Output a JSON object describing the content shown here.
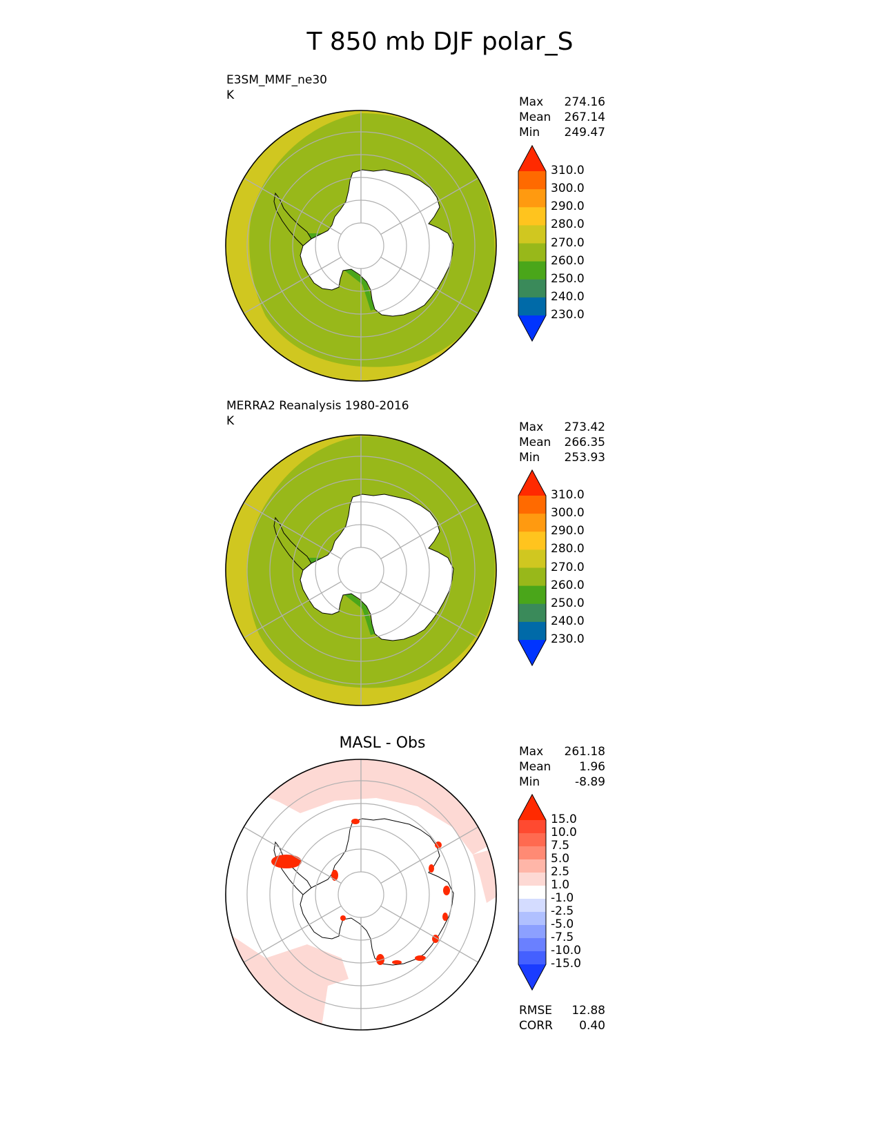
{
  "figure_title": "T 850 mb DJF polar_S",
  "panels": [
    {
      "id": "test",
      "label": "E3SM_MMF_ne30",
      "units": "K",
      "title": "",
      "stats": {
        "labels": [
          "Max",
          "Mean",
          "Min"
        ],
        "values": [
          "274.16",
          "267.14",
          "249.47"
        ]
      }
    },
    {
      "id": "ref",
      "label": "MERRA2 Reanalysis 1980-2016",
      "units": "K",
      "title": "",
      "stats": {
        "labels": [
          "Max",
          "Mean",
          "Min"
        ],
        "values": [
          "273.42",
          "266.35",
          "253.93"
        ]
      }
    },
    {
      "id": "diff",
      "label": "",
      "units": "",
      "title": "MASL - Obs",
      "stats": {
        "labels": [
          "Max",
          "Mean",
          "Min"
        ],
        "values": [
          "261.18",
          "1.96",
          "-8.89"
        ]
      },
      "metrics": {
        "labels": [
          "RMSE",
          "CORR"
        ],
        "values": [
          "12.88",
          "0.40"
        ]
      }
    }
  ],
  "colors": {
    "fill_270_280": "#98b81a",
    "fill_280_290": "#d0c720",
    "fill_250_260": "#4aa61a",
    "land_ice": "#ffffff",
    "grid": "#b0b0b0",
    "diff_pos_small": "#fdd9d4",
    "diff_pos_large": "#ff2a00"
  },
  "chart_data": [
    {
      "type": "heatmap",
      "projection": "south-polar stereographic",
      "name": "E3SM_MMF_ne30",
      "colorbar": {
        "levels": [
          "310.0",
          "300.0",
          "290.0",
          "280.0",
          "270.0",
          "260.0",
          "250.0",
          "240.0",
          "230.0"
        ],
        "colors": [
          "#ff2a00",
          "#ff6a00",
          "#ff9a10",
          "#ffc41e",
          "#d0c720",
          "#98b81a",
          "#4aa61a",
          "#3a8a5a",
          "#006aa8",
          "#0034ff"
        ],
        "extend": "both"
      },
      "dominant_values_K": {
        "ocean_band": 270,
        "outer_band": 280,
        "coastal": 260
      }
    },
    {
      "type": "heatmap",
      "projection": "south-polar stereographic",
      "name": "MERRA2 Reanalysis 1980-2016",
      "colorbar": {
        "levels": [
          "310.0",
          "300.0",
          "290.0",
          "280.0",
          "270.0",
          "260.0",
          "250.0",
          "240.0",
          "230.0"
        ],
        "colors": [
          "#ff2a00",
          "#ff6a00",
          "#ff9a10",
          "#ffc41e",
          "#d0c720",
          "#98b81a",
          "#4aa61a",
          "#3a8a5a",
          "#006aa8",
          "#0034ff"
        ],
        "extend": "both"
      },
      "dominant_values_K": {
        "ocean_band": 270,
        "outer_band": 280,
        "coastal": 260
      }
    },
    {
      "type": "heatmap",
      "projection": "south-polar stereographic",
      "name": "MASL - Obs",
      "colorbar": {
        "levels": [
          "15.0",
          "10.0",
          "7.5",
          "5.0",
          "2.5",
          "1.0",
          "-1.0",
          "-2.5",
          "-5.0",
          "-7.5",
          "-10.0",
          "-15.0"
        ],
        "colors": [
          "#ff2a00",
          "#ff4a30",
          "#ff6a50",
          "#ff8a74",
          "#ffb6a8",
          "#fdd9d4",
          "#ffffff",
          "#d4dcff",
          "#b0c0ff",
          "#8ca0ff",
          "#6a80ff",
          "#4460ff",
          "#1a3cff"
        ],
        "extend": "both"
      }
    }
  ]
}
